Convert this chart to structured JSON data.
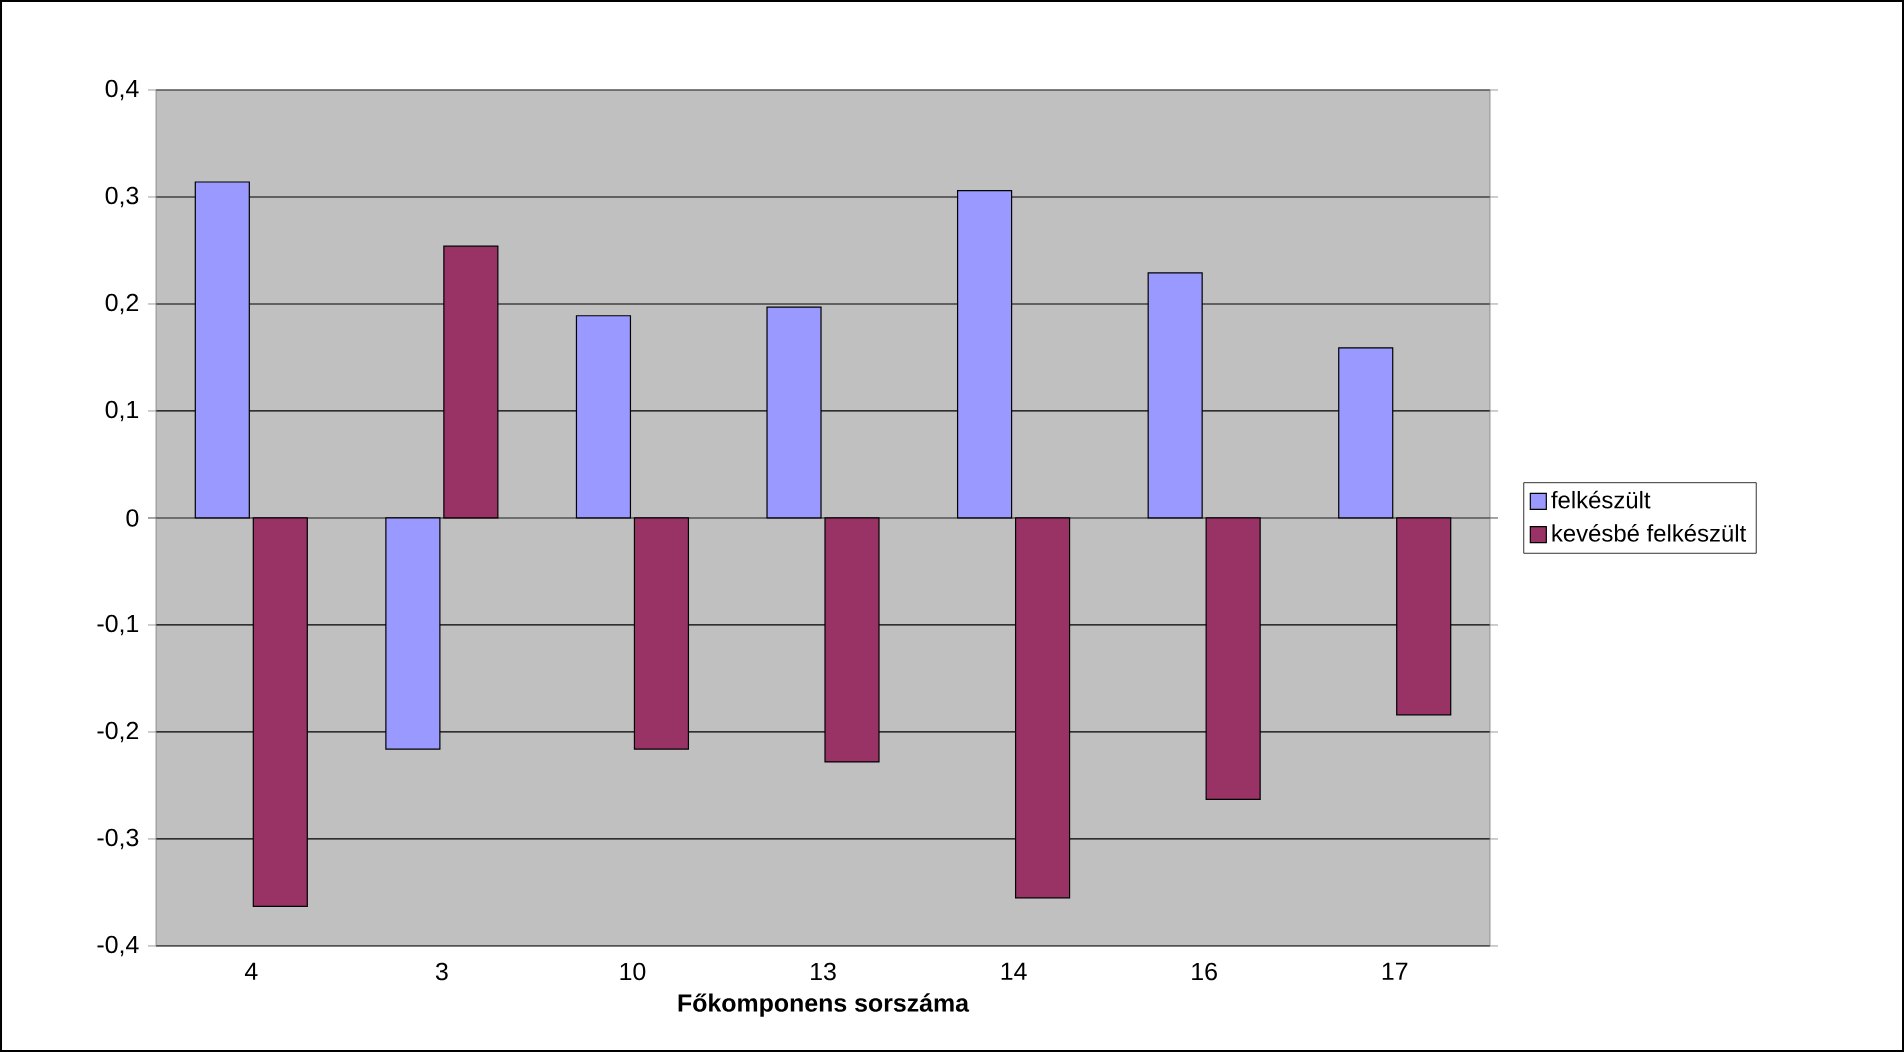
{
  "chart_data": {
    "type": "bar",
    "xlabel": "Főkomponens sorszáma",
    "categories": [
      "4",
      "3",
      "10",
      "13",
      "14",
      "16",
      "17"
    ],
    "series": [
      {
        "name": "felkészült",
        "color": "#9999ff",
        "values": [
          0.314,
          -0.216,
          0.189,
          0.197,
          0.306,
          0.229,
          0.159
        ]
      },
      {
        "name": "kevésbé felkészült",
        "color": "#993366",
        "values": [
          -0.363,
          0.254,
          -0.216,
          -0.228,
          -0.355,
          -0.263,
          -0.184
        ]
      }
    ],
    "ylim": [
      -0.4,
      0.4
    ],
    "yticks": [
      {
        "value": -0.4,
        "label": "-0,4"
      },
      {
        "value": -0.3,
        "label": "-0,3"
      },
      {
        "value": -0.2,
        "label": "-0,2"
      },
      {
        "value": -0.1,
        "label": "-0,1"
      },
      0,
      {
        "value": 0.1,
        "label": "0,1"
      },
      {
        "value": 0.2,
        "label": "0,2"
      },
      {
        "value": 0.3,
        "label": "0,3"
      },
      {
        "value": 0.4,
        "label": "0,4"
      }
    ],
    "grid": "y",
    "legend": "right"
  }
}
